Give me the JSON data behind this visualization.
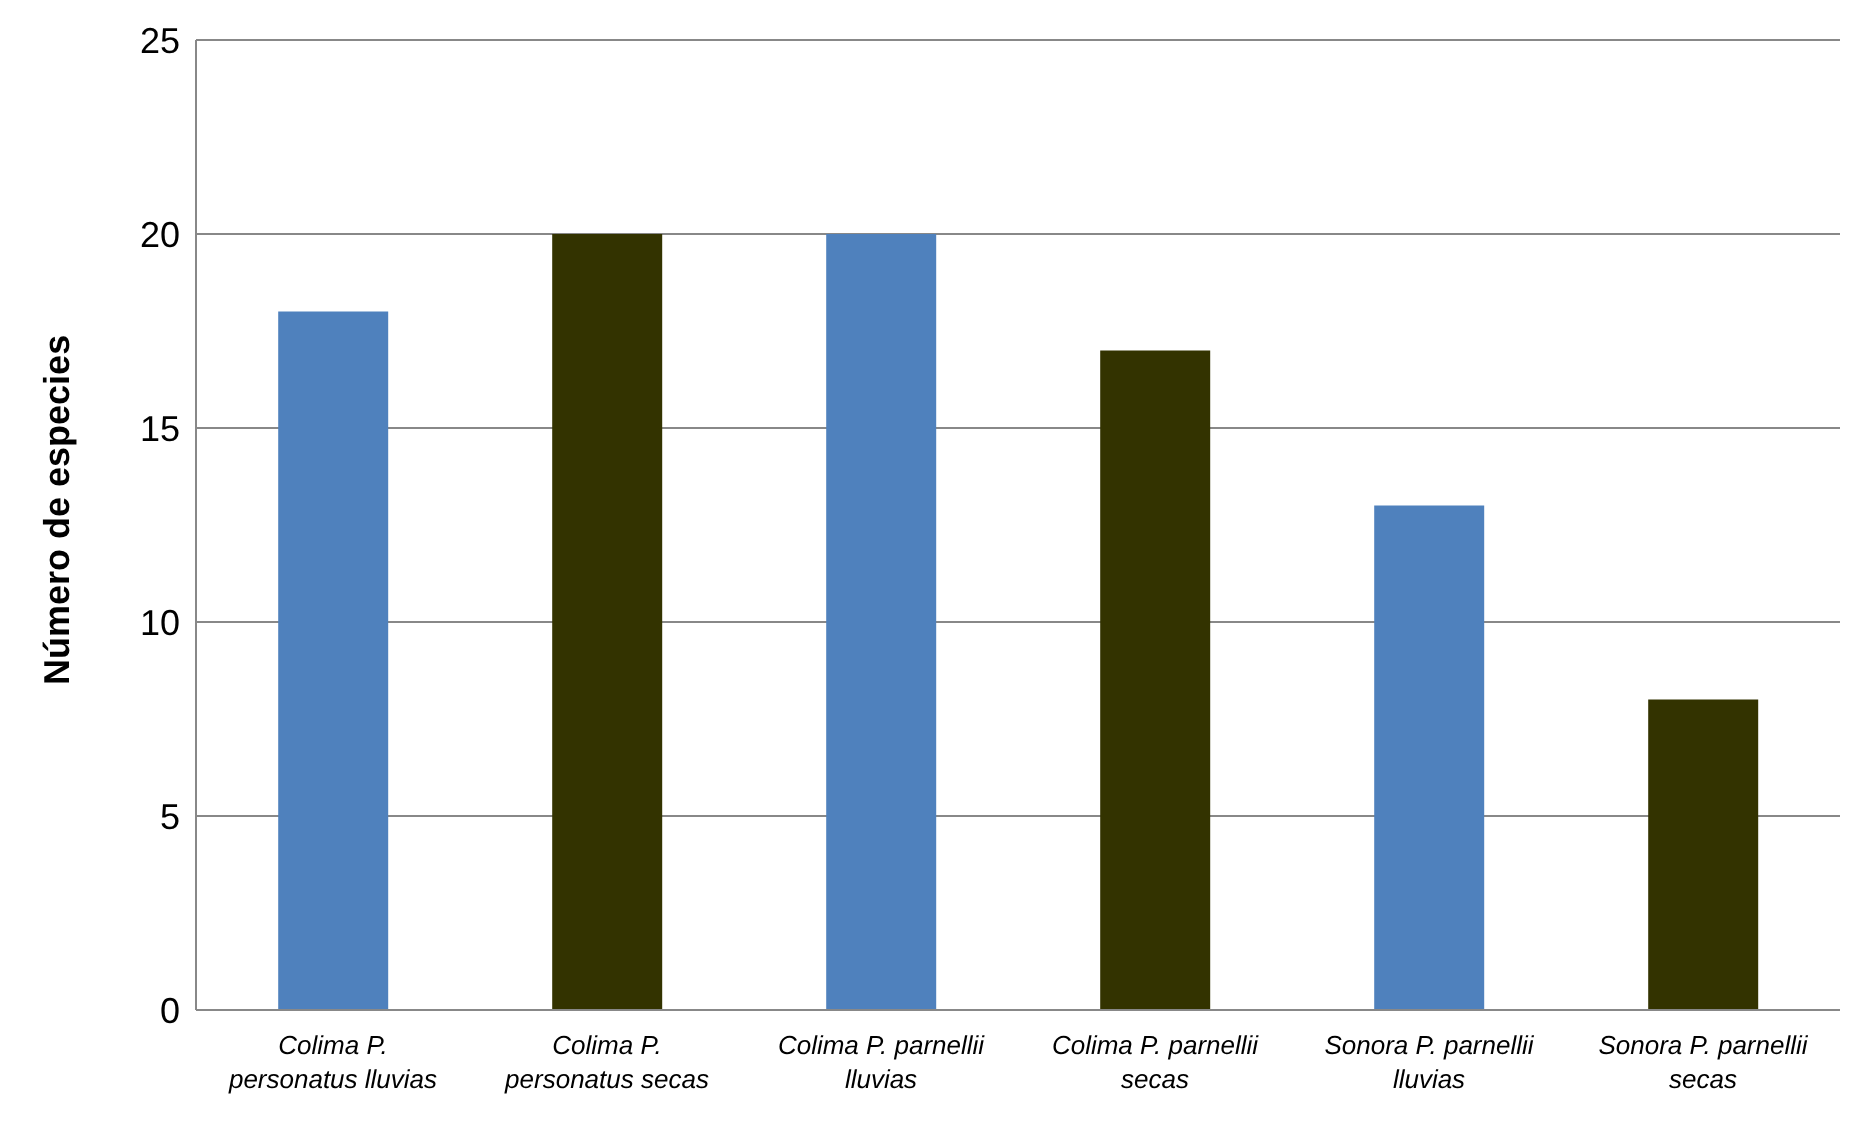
{
  "chart_data": {
    "type": "bar",
    "ylabel": "Número de especies",
    "categories": [
      "Colima P. personatus lluvias",
      "Colima P. personatus secas",
      "Colima P. parnellii lluvias",
      "Colima P. parnellii secas",
      "Sonora P. parnellii lluvias",
      "Sonora P. parnellii secas"
    ],
    "values": [
      18,
      20,
      20,
      17,
      13,
      8
    ],
    "colors": [
      "#4f81bd",
      "#333300",
      "#4f81bd",
      "#333300",
      "#4f81bd",
      "#333300"
    ],
    "ylim": [
      0,
      25
    ],
    "yticks": [
      0,
      5,
      10,
      15,
      20,
      25
    ],
    "grid": "y",
    "legend": false
  }
}
